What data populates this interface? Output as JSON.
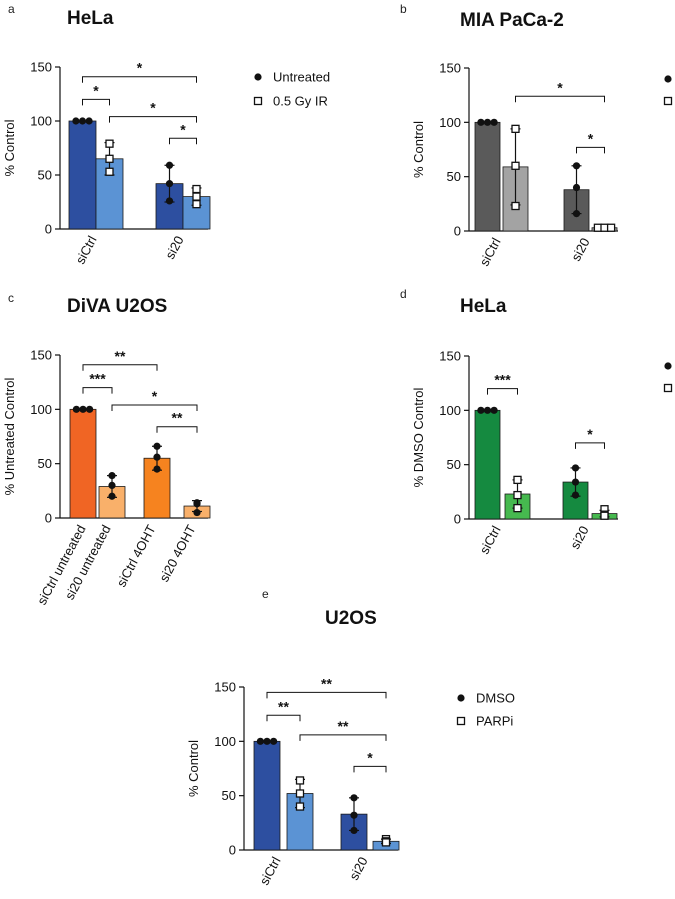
{
  "chart_data": [
    {
      "panel": "a",
      "type": "bar",
      "title": "HeLa",
      "ylabel": "% Control",
      "ylim": [
        0,
        150
      ],
      "yticks": [
        0,
        50,
        100,
        150
      ],
      "groups": [
        "siCtrl",
        "si20"
      ],
      "legend": [
        "Untreated",
        "0.5 Gy IR"
      ],
      "bars": [
        {
          "value": 100,
          "sd": 0,
          "color": "#2d4fa0",
          "marker": "dot",
          "points": [
            100,
            100,
            100
          ]
        },
        {
          "value": 65,
          "sd": 15,
          "color": "#5b93d4",
          "marker": "square",
          "points": [
            79,
            65,
            53
          ]
        },
        {
          "value": 42,
          "sd": 17,
          "color": "#2d4fa0",
          "marker": "dot",
          "points": [
            59,
            42,
            26
          ]
        },
        {
          "value": 30,
          "sd": 8,
          "color": "#5b93d4",
          "marker": "square",
          "points": [
            37,
            30,
            23
          ]
        }
      ],
      "significance": [
        {
          "from": 0,
          "to": 1,
          "level": 120,
          "label": "*"
        },
        {
          "from": 0,
          "to": 3,
          "level": 141,
          "label": "*"
        },
        {
          "from": 1,
          "to": 3,
          "level": 104,
          "label": "*"
        },
        {
          "from": 2,
          "to": 3,
          "level": 84,
          "label": "*"
        }
      ]
    },
    {
      "panel": "b",
      "type": "bar",
      "title": "MIA PaCa-2",
      "ylabel": "% Control",
      "ylim": [
        0,
        150
      ],
      "yticks": [
        0,
        50,
        100,
        150
      ],
      "groups": [
        "siCtrl",
        "si20"
      ],
      "legend": [],
      "bars": [
        {
          "value": 100,
          "sd": 0,
          "color": "#5a5a5a",
          "marker": "dot",
          "points": [
            100,
            100,
            100
          ]
        },
        {
          "value": 59,
          "sd": 35,
          "color": "#a3a3a3",
          "marker": "square",
          "points": [
            94,
            60,
            23
          ]
        },
        {
          "value": 38,
          "sd": 22,
          "color": "#5a5a5a",
          "marker": "dot",
          "points": [
            60,
            40,
            16
          ]
        },
        {
          "value": 3,
          "sd": 1,
          "color": "#a3a3a3",
          "marker": "square",
          "points": [
            3,
            3,
            3
          ]
        }
      ],
      "significance": [
        {
          "from": 1,
          "to": 3,
          "level": 124,
          "label": "*"
        },
        {
          "from": 2,
          "to": 3,
          "level": 77,
          "label": "*"
        }
      ]
    },
    {
      "panel": "c",
      "type": "bar",
      "title": "DiVA U2OS",
      "ylabel": "% Untreated  Control",
      "ylim": [
        0,
        150
      ],
      "yticks": [
        0,
        50,
        100,
        150
      ],
      "groups": [
        "siCtrl untreated",
        "si20 untreated",
        "siCtrl 4OHT",
        "si20 4OHT"
      ],
      "legend": [],
      "bars": [
        {
          "value": 100,
          "sd": 0,
          "color": "#f06524",
          "marker": "dot",
          "points": [
            100,
            100,
            100
          ]
        },
        {
          "value": 29,
          "sd": 10,
          "color": "#f9b06a",
          "marker": "dot",
          "points": [
            39,
            30,
            20
          ]
        },
        {
          "value": 55,
          "sd": 11,
          "color": "#f6831f",
          "marker": "dot",
          "points": [
            66,
            56,
            45
          ]
        },
        {
          "value": 11,
          "sd": 5,
          "color": "#f9b06a",
          "marker": "dot",
          "points": [
            14,
            13,
            5
          ]
        }
      ],
      "significance": [
        {
          "from": 0,
          "to": 1,
          "level": 120,
          "label": "***"
        },
        {
          "from": 0,
          "to": 2,
          "level": 141,
          "label": "**"
        },
        {
          "from": 1,
          "to": 3,
          "level": 104,
          "label": "*"
        },
        {
          "from": 2,
          "to": 3,
          "level": 84,
          "label": "**"
        }
      ]
    },
    {
      "panel": "d",
      "type": "bar",
      "title": "HeLa",
      "ylabel": "% DMSO Control",
      "ylim": [
        0,
        150
      ],
      "yticks": [
        0,
        50,
        100,
        150
      ],
      "groups": [
        "siCtrl",
        "si20"
      ],
      "legend": [],
      "bars": [
        {
          "value": 100,
          "sd": 0,
          "color": "#158a40",
          "marker": "dot",
          "points": [
            100,
            100,
            100
          ]
        },
        {
          "value": 23,
          "sd": 13,
          "color": "#46b94f",
          "marker": "square",
          "points": [
            36,
            22,
            10
          ]
        },
        {
          "value": 34,
          "sd": 13,
          "color": "#158a40",
          "marker": "dot",
          "points": [
            47,
            34,
            22
          ]
        },
        {
          "value": 5,
          "sd": 3,
          "color": "#46b94f",
          "marker": "square",
          "points": [
            9,
            4,
            3
          ]
        }
      ],
      "significance": [
        {
          "from": 0,
          "to": 1,
          "level": 120,
          "label": "***"
        },
        {
          "from": 2,
          "to": 3,
          "level": 70,
          "label": "*"
        }
      ]
    },
    {
      "panel": "e",
      "type": "bar",
      "title": "U2OS",
      "ylabel": "%  Control",
      "ylim": [
        0,
        150
      ],
      "yticks": [
        0,
        50,
        100,
        150
      ],
      "groups": [
        "siCtrl",
        "si20"
      ],
      "legend": [
        "DMSO",
        "PARPi"
      ],
      "bars": [
        {
          "value": 100,
          "sd": 0,
          "color": "#2d4fa0",
          "marker": "dot",
          "points": [
            100,
            100,
            100
          ]
        },
        {
          "value": 52,
          "sd": 13,
          "color": "#5b93d4",
          "marker": "square",
          "points": [
            64,
            52,
            40
          ]
        },
        {
          "value": 33,
          "sd": 15,
          "color": "#2d4fa0",
          "marker": "dot",
          "points": [
            48,
            32,
            18
          ]
        },
        {
          "value": 8,
          "sd": 2,
          "color": "#5b93d4",
          "marker": "square",
          "points": [
            10,
            8,
            7
          ]
        }
      ],
      "significance": [
        {
          "from": 0,
          "to": 1,
          "level": 124,
          "label": "**"
        },
        {
          "from": 0,
          "to": 3,
          "level": 145,
          "label": "**"
        },
        {
          "from": 1,
          "to": 3,
          "level": 106,
          "label": "**"
        },
        {
          "from": 2,
          "to": 3,
          "level": 77,
          "label": "*"
        }
      ]
    }
  ]
}
